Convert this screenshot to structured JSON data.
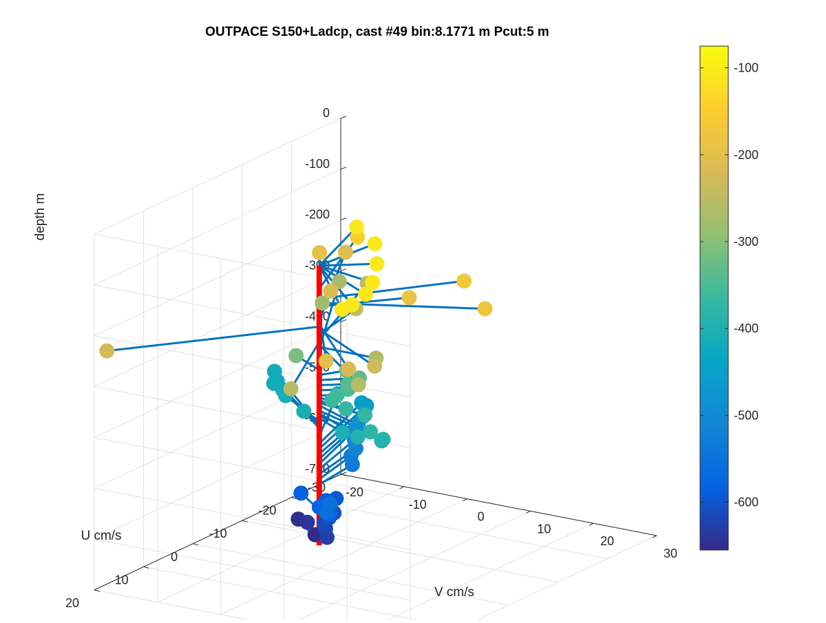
{
  "chart_data": {
    "type": "scatter",
    "subtype": "3d-stem-profile",
    "title": "OUTPACE S150+Ladcp, cast #49 bin:8.1771 m  Pcut:5 m",
    "xlabel": "V cm/s",
    "ylabel": "U cm/s",
    "zlabel": "depth m",
    "xlim": [
      -20,
      30
    ],
    "ylim": [
      -30,
      20
    ],
    "zlim": [
      -700,
      0
    ],
    "x_ticks": [
      "-20",
      "-10",
      "0",
      "10",
      "20",
      "30"
    ],
    "y_ticks": [
      "-30",
      "-20",
      "-10",
      "0",
      "10",
      "20"
    ],
    "z_ticks": [
      "0",
      "-100",
      "-200",
      "-300",
      "-400",
      "-500",
      "-600",
      "-700"
    ],
    "colorbar": {
      "colormap": "parula",
      "range": [
        -655,
        -75
      ],
      "ticks": [
        "-100",
        "-200",
        "-300",
        "-400",
        "-500",
        "-600"
      ]
    },
    "grid": true,
    "stem_color": "#0072bd",
    "profile_line": {
      "color": "#ff0000",
      "depth_range": [
        -655,
        -105
      ]
    },
    "points": [
      {
        "z": -105,
        "u": -14,
        "v": -5
      },
      {
        "z": -105,
        "u": -10,
        "v": 1
      },
      {
        "z": -105,
        "u": -4,
        "v": 6
      },
      {
        "z": -105,
        "u": 2,
        "v": 10
      },
      {
        "z": -105,
        "u": 6,
        "v": 12
      },
      {
        "z": -105,
        "u": 10,
        "v": 13
      },
      {
        "z": -105,
        "u": 12,
        "v": 13
      },
      {
        "z": -150,
        "u": -18,
        "v": -8
      },
      {
        "z": -170,
        "u": -14,
        "v": 12
      },
      {
        "z": -178,
        "u": -8,
        "v": 20
      },
      {
        "z": -185,
        "u": -8,
        "v": 8
      },
      {
        "z": -195,
        "u": -18,
        "v": -14
      },
      {
        "z": -200,
        "u": 14,
        "v": 12
      },
      {
        "z": -210,
        "u": -22,
        "v": -13
      },
      {
        "z": -215,
        "u": -10,
        "v": -6
      },
      {
        "z": -220,
        "u": 12,
        "v": 14
      },
      {
        "z": -225,
        "u": 20,
        "v": -18
      },
      {
        "z": -230,
        "u": 8,
        "v": 15
      },
      {
        "z": -240,
        "u": -10,
        "v": -2
      },
      {
        "z": -250,
        "u": -20,
        "v": -8
      },
      {
        "z": -255,
        "u": 16,
        "v": 8
      },
      {
        "z": -260,
        "u": 10,
        "v": 14
      },
      {
        "z": -265,
        "u": 0,
        "v": 9
      },
      {
        "z": -270,
        "u": -22,
        "v": -14
      },
      {
        "z": -280,
        "u": -16,
        "v": -12
      },
      {
        "z": -310,
        "u": -3,
        "v": -6
      },
      {
        "z": -320,
        "u": -3,
        "v": 2
      },
      {
        "z": -330,
        "u": -3,
        "v": 4
      },
      {
        "z": -340,
        "u": -2,
        "v": 3
      },
      {
        "z": -350,
        "u": -2,
        "v": 3
      },
      {
        "z": -360,
        "u": -1,
        "v": 2
      },
      {
        "z": -365,
        "u": 0,
        "v": 2
      },
      {
        "z": -370,
        "u": 1,
        "v": 5
      },
      {
        "z": -375,
        "u": 1,
        "v": 8
      },
      {
        "z": -380,
        "u": 5,
        "v": 12
      },
      {
        "z": -390,
        "u": 5,
        "v": 14
      },
      {
        "z": -395,
        "u": 5,
        "v": 10
      },
      {
        "z": -400,
        "u": 4,
        "v": 13
      },
      {
        "z": -405,
        "u": 3,
        "v": 6
      },
      {
        "z": -410,
        "u": -2,
        "v": -4
      },
      {
        "z": -412,
        "u": -6,
        "v": -10
      },
      {
        "z": -415,
        "u": -8,
        "v": -12
      },
      {
        "z": -418,
        "u": -10,
        "v": -15
      },
      {
        "z": -420,
        "u": -14,
        "v": -18
      },
      {
        "z": -425,
        "u": -12,
        "v": -16
      },
      {
        "z": -440,
        "u": -14,
        "v": -8
      },
      {
        "z": -455,
        "u": -15,
        "v": -5
      },
      {
        "z": -465,
        "u": -16,
        "v": -5
      },
      {
        "z": -475,
        "u": -14,
        "v": -4
      },
      {
        "z": -485,
        "u": -13,
        "v": -4
      },
      {
        "z": -495,
        "u": -12,
        "v": -4
      },
      {
        "z": -505,
        "u": -11,
        "v": -3
      },
      {
        "z": -515,
        "u": -10,
        "v": -2
      },
      {
        "z": -525,
        "u": -9,
        "v": -2
      },
      {
        "z": -535,
        "u": -8,
        "v": -1
      },
      {
        "z": -550,
        "u": 3,
        "v": 4
      },
      {
        "z": -555,
        "u": 5,
        "v": 5
      },
      {
        "z": -560,
        "u": 2,
        "v": 3
      },
      {
        "z": -570,
        "u": 3,
        "v": 4
      },
      {
        "z": -580,
        "u": 0,
        "v": 0
      },
      {
        "z": -585,
        "u": -4,
        "v": -6
      },
      {
        "z": -590,
        "u": -4,
        "v": -2
      },
      {
        "z": -595,
        "u": -6,
        "v": -2
      },
      {
        "z": -605,
        "u": -3,
        "v": 0
      },
      {
        "z": -610,
        "u": -2,
        "v": 0
      },
      {
        "z": -615,
        "u": -1,
        "v": 0
      },
      {
        "z": -620,
        "u": 0,
        "v": 1
      },
      {
        "z": -630,
        "u": 1,
        "v": 2
      },
      {
        "z": -640,
        "u": -4,
        "v": -5
      },
      {
        "z": -650,
        "u": -6,
        "v": -8
      },
      {
        "z": -655,
        "u": -3,
        "v": -3
      }
    ]
  }
}
